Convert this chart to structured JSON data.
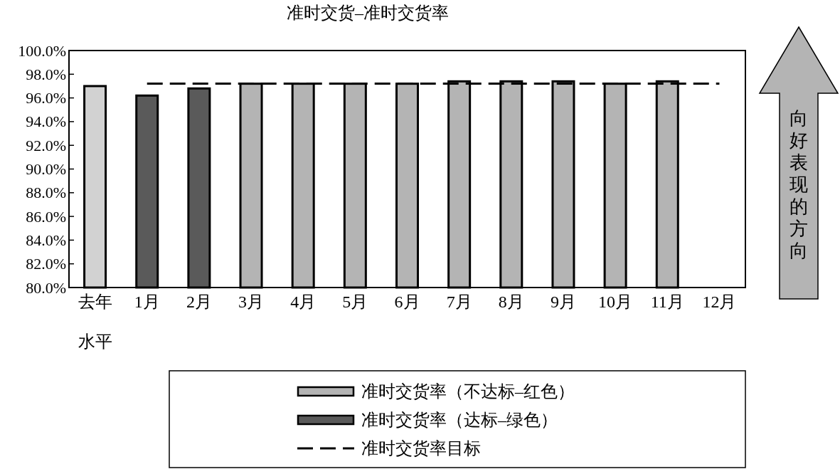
{
  "chart_data": {
    "type": "bar",
    "title": "准时交货–准时交货率",
    "categories": [
      "去年水平",
      "1月",
      "2月",
      "3月",
      "4月",
      "5月",
      "6月",
      "7月",
      "8月",
      "9月",
      "10月",
      "11月",
      "12月"
    ],
    "series": [
      {
        "name": "准时交货率（不达标–红色）",
        "color": "#b4b4b4",
        "colors": [
          "#d2d2d2",
          null,
          null,
          "#b4b4b4",
          "#b4b4b4",
          "#b4b4b4",
          "#b4b4b4",
          "#b4b4b4",
          "#b4b4b4",
          "#b4b4b4",
          "#b4b4b4",
          "#b4b4b4",
          null
        ],
        "values": [
          97.0,
          null,
          null,
          97.2,
          97.2,
          97.2,
          97.2,
          97.4,
          97.4,
          97.4,
          97.2,
          97.4,
          null
        ]
      },
      {
        "name": "准时交货率（达标–绿色）",
        "color": "#5a5a5a",
        "values": [
          null,
          96.2,
          96.8,
          null,
          null,
          null,
          null,
          null,
          null,
          null,
          null,
          null,
          null
        ]
      },
      {
        "name": "准时交货率目标",
        "type": "line",
        "color": "#000000",
        "line_style": "dashed",
        "values": [
          null,
          97.2,
          97.2,
          97.2,
          97.2,
          97.2,
          97.2,
          97.2,
          97.2,
          97.2,
          97.2,
          97.2,
          97.2
        ]
      }
    ],
    "ylim": [
      80,
      100
    ],
    "yticks": [
      {
        "value": 80,
        "label": "80.0%"
      },
      {
        "value": 82,
        "label": "82.0%"
      },
      {
        "value": 84,
        "label": "84.0%"
      },
      {
        "value": 86,
        "label": "86.0%"
      },
      {
        "value": 88,
        "label": "88.0%"
      },
      {
        "value": 90,
        "label": "90.0%"
      },
      {
        "value": 92,
        "label": "92.0%"
      },
      {
        "value": 94,
        "label": "94.0%"
      },
      {
        "value": 96,
        "label": "96.0%"
      },
      {
        "value": 98,
        "label": "98.0%"
      },
      {
        "value": 100,
        "label": "100.0%"
      }
    ],
    "grid": false,
    "legend": "bottom",
    "annotations": [
      "向好表现的方向"
    ]
  }
}
